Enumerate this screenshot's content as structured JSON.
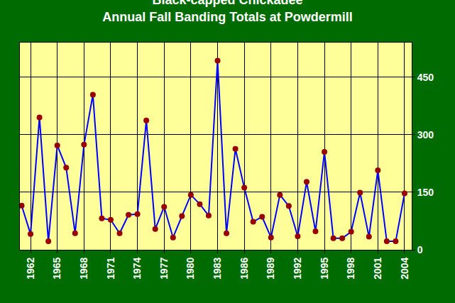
{
  "chart_data": {
    "type": "line",
    "title": "Black-capped Chickadee",
    "subtitle": "Annual Fall Banding Totals at Powdermill",
    "x": [
      1961,
      1962,
      1963,
      1964,
      1965,
      1966,
      1967,
      1968,
      1969,
      1970,
      1971,
      1972,
      1973,
      1974,
      1975,
      1976,
      1977,
      1978,
      1979,
      1980,
      1981,
      1982,
      1983,
      1984,
      1985,
      1986,
      1987,
      1988,
      1989,
      1990,
      1991,
      1992,
      1993,
      1994,
      1995,
      1996,
      1997,
      1998,
      1999,
      2000,
      2001,
      2002,
      2003,
      2004
    ],
    "values": [
      115,
      41,
      345,
      22,
      272,
      214,
      43,
      274,
      404,
      82,
      78,
      43,
      91,
      93,
      337,
      54,
      112,
      32,
      88,
      143,
      119,
      89,
      493,
      43,
      263,
      162,
      73,
      86,
      32,
      143,
      114,
      35,
      177,
      48,
      255,
      30,
      30,
      47,
      149,
      34,
      207,
      22,
      22,
      147
    ],
    "color": "#0000ff",
    "marker_color": "#990000",
    "marker": "circle",
    "line_style": "solid",
    "xlim": [
      1960.8,
      2004.8
    ],
    "xticks": [
      1962,
      1965,
      1968,
      1971,
      1974,
      1977,
      1980,
      1983,
      1986,
      1989,
      1992,
      1995,
      1998,
      2001,
      2004
    ],
    "ylim": [
      0,
      540
    ],
    "yticks": [
      0,
      150,
      300,
      450
    ],
    "grid": true
  }
}
